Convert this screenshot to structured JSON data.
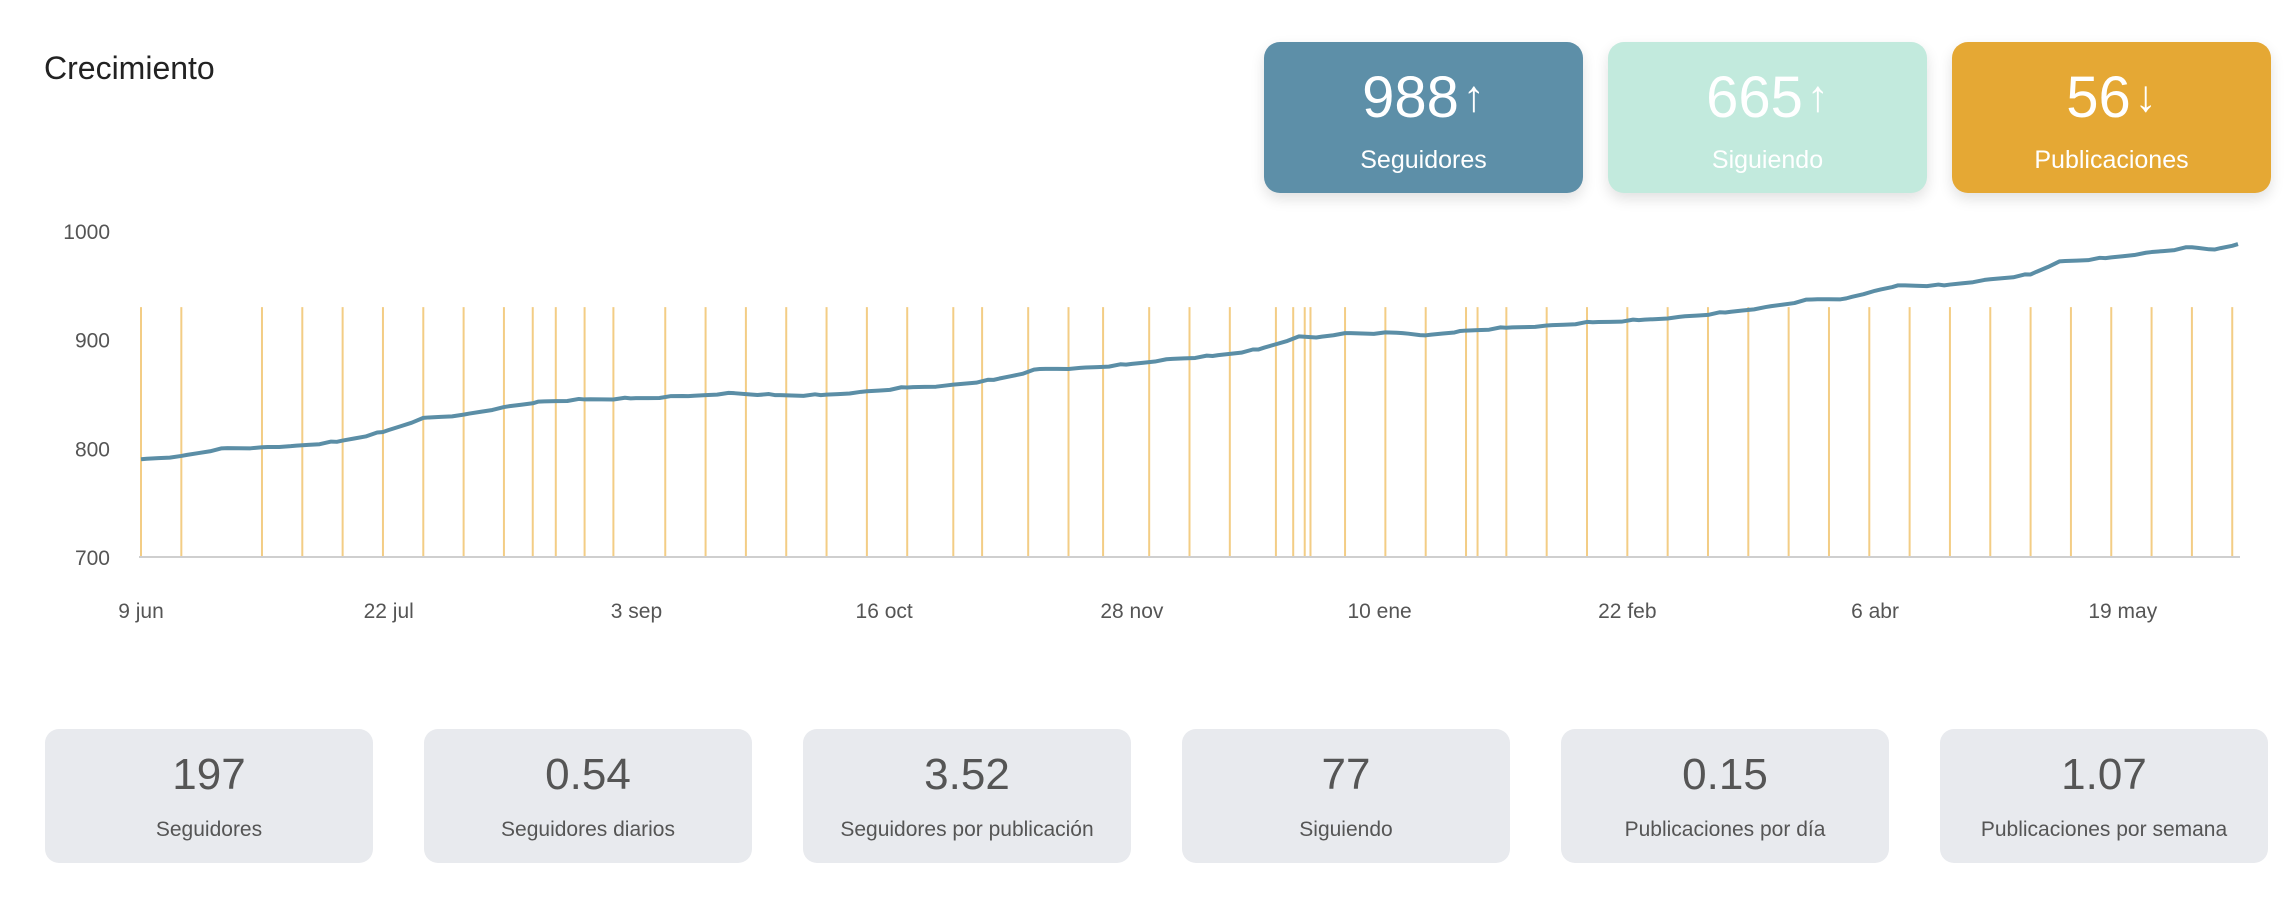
{
  "title": "Crecimiento",
  "kpis": [
    {
      "value": "988",
      "arrow": "↑",
      "label": "Seguidores",
      "color": "#5d8fa8"
    },
    {
      "value": "665",
      "arrow": "↑",
      "label": "Siguiendo",
      "color": "#c2eadd"
    },
    {
      "value": "56",
      "arrow": "↓",
      "label": "Publicaciones",
      "color": "#e5a834"
    }
  ],
  "chart_data": {
    "type": "line",
    "title": "Crecimiento",
    "xlabel": "",
    "ylabel": "",
    "ylim": [
      700,
      1000
    ],
    "yticks": [
      "700",
      "800",
      "900",
      "1000"
    ],
    "xlim_days": [
      0,
      364
    ],
    "xticks": [
      {
        "day": 0,
        "label": "9 jun"
      },
      {
        "day": 43,
        "label": "22 jul"
      },
      {
        "day": 86,
        "label": "3 sep"
      },
      {
        "day": 129,
        "label": "16 oct"
      },
      {
        "day": 172,
        "label": "28 nov"
      },
      {
        "day": 215,
        "label": "10 ene"
      },
      {
        "day": 258,
        "label": "22 feb"
      },
      {
        "day": 301,
        "label": "6 abr"
      },
      {
        "day": 344,
        "label": "19 may"
      }
    ],
    "series": [
      {
        "name": "Seguidores",
        "color": "#5b8ea6",
        "x": [
          0,
          7,
          14,
          21,
          26,
          34,
          42,
          49,
          56,
          63,
          69,
          77,
          85,
          95,
          102,
          110,
          118,
          125,
          133,
          140,
          148,
          156,
          163,
          171,
          178,
          186,
          194,
          201,
          204,
          209,
          219,
          223,
          229,
          237,
          244,
          252,
          260,
          267,
          275,
          282,
          290,
          296,
          301,
          305,
          313,
          320,
          328,
          333,
          341,
          348,
          356,
          360,
          364
        ],
        "y": [
          790,
          793,
          800,
          801,
          802,
          806,
          815,
          828,
          831,
          838,
          843,
          845,
          846,
          848,
          851,
          849,
          849,
          852,
          856,
          858,
          863,
          873,
          874,
          877,
          882,
          885,
          891,
          903,
          902,
          906,
          906,
          904,
          908,
          911,
          913,
          916,
          918,
          921,
          925,
          930,
          937,
          938,
          945,
          950,
          950,
          955,
          960,
          972,
          975,
          980,
          985,
          983,
          988
        ]
      }
    ],
    "post_markers": {
      "name": "Publicaciones",
      "color": "#f3cd85",
      "height_value": 930,
      "days": [
        0,
        7,
        21,
        28,
        35,
        42,
        49,
        56,
        63,
        68,
        72,
        77,
        82,
        91,
        98,
        105,
        112,
        119,
        126,
        133,
        141,
        146,
        154,
        161,
        167,
        175,
        182,
        189,
        197,
        200,
        202,
        203,
        209,
        216,
        223,
        230,
        232,
        237,
        244,
        251,
        258,
        265,
        272,
        279,
        286,
        293,
        300,
        307,
        314,
        321,
        328,
        335,
        342,
        349,
        356,
        363
      ]
    }
  },
  "stats": [
    {
      "value": "197",
      "label": "Seguidores"
    },
    {
      "value": "0.54",
      "label": "Seguidores diarios"
    },
    {
      "value": "3.52",
      "label": "Seguidores por publicación"
    },
    {
      "value": "77",
      "label": "Siguiendo"
    },
    {
      "value": "0.15",
      "label": "Publicaciones por día"
    },
    {
      "value": "1.07",
      "label": "Publicaciones por semana"
    }
  ]
}
